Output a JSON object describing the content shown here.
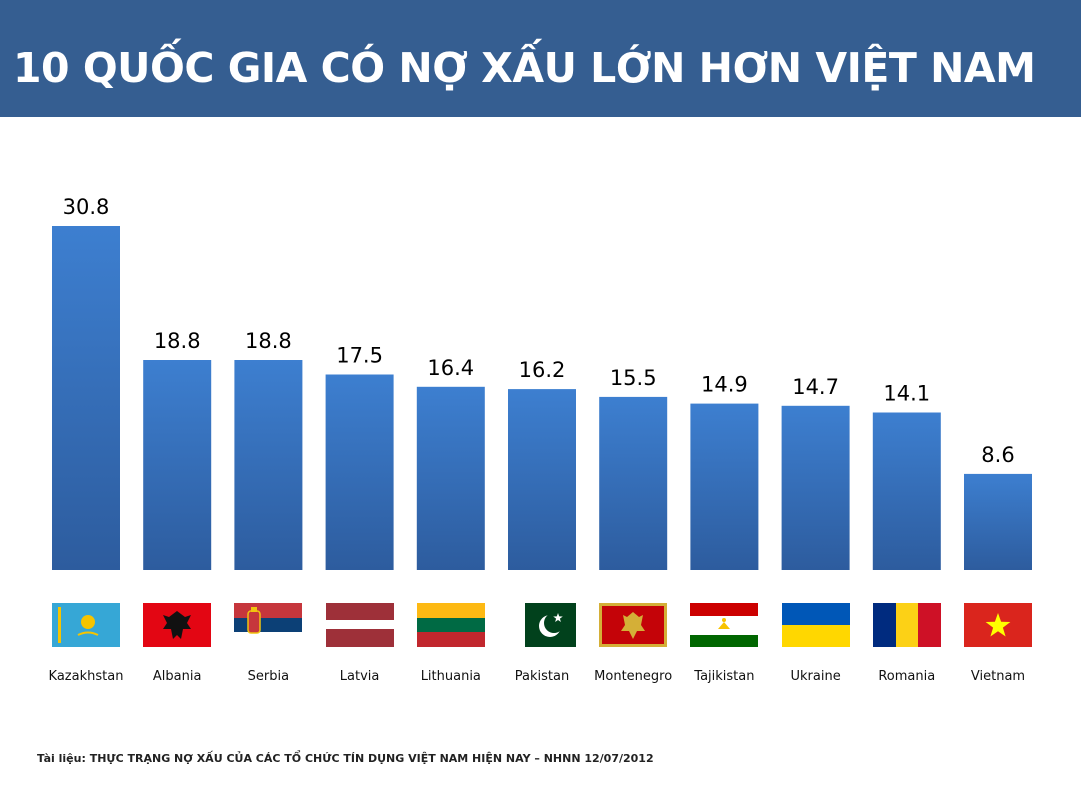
{
  "header": {
    "title": "10 QUỐC GIA CÓ NỢ XẤU LỚN HƠN VIỆT NAM"
  },
  "colors": {
    "header_bg": "#355e91",
    "bar_top": "#3d7fd0",
    "bar_bottom": "#2e5fa3"
  },
  "chart_data": {
    "type": "bar",
    "title": "10 QUỐC GIA CÓ NỢ XẤU LỚN HƠN VIỆT NAM",
    "categories": [
      "Kazakhstan",
      "Albania",
      "Serbia",
      "Latvia",
      "Lithuania",
      "Pakistan",
      "Montenegro",
      "Tajikistan",
      "Ukraine",
      "Romania",
      "Vietnam"
    ],
    "values": [
      30.8,
      18.8,
      18.8,
      17.5,
      16.4,
      16.2,
      15.5,
      14.9,
      14.7,
      14.1,
      8.6
    ],
    "value_labels": [
      "30.8",
      "18.8",
      "18.8",
      "17.5",
      "16.4",
      "16.2",
      "15.5",
      "14.9",
      "14.7",
      "14.1",
      "8.6"
    ],
    "xlabel": "",
    "ylabel": "",
    "ylim": [
      0,
      30.8
    ],
    "grid": false,
    "legend": "none"
  },
  "flags": [
    "kazakhstan-flag-icon",
    "albania-flag-icon",
    "serbia-flag-icon",
    "latvia-flag-icon",
    "lithuania-flag-icon",
    "pakistan-flag-icon",
    "montenegro-flag-icon",
    "tajikistan-flag-icon",
    "ukraine-flag-icon",
    "romania-flag-icon",
    "vietnam-flag-icon"
  ],
  "footer": {
    "source": "Tài liệu: THỰC TRẠNG NỢ XẤU CỦA CÁC TỔ CHỨC TÍN DỤNG VIỆT NAM  HIỆN NAY – NHNN  12/07/2012"
  }
}
